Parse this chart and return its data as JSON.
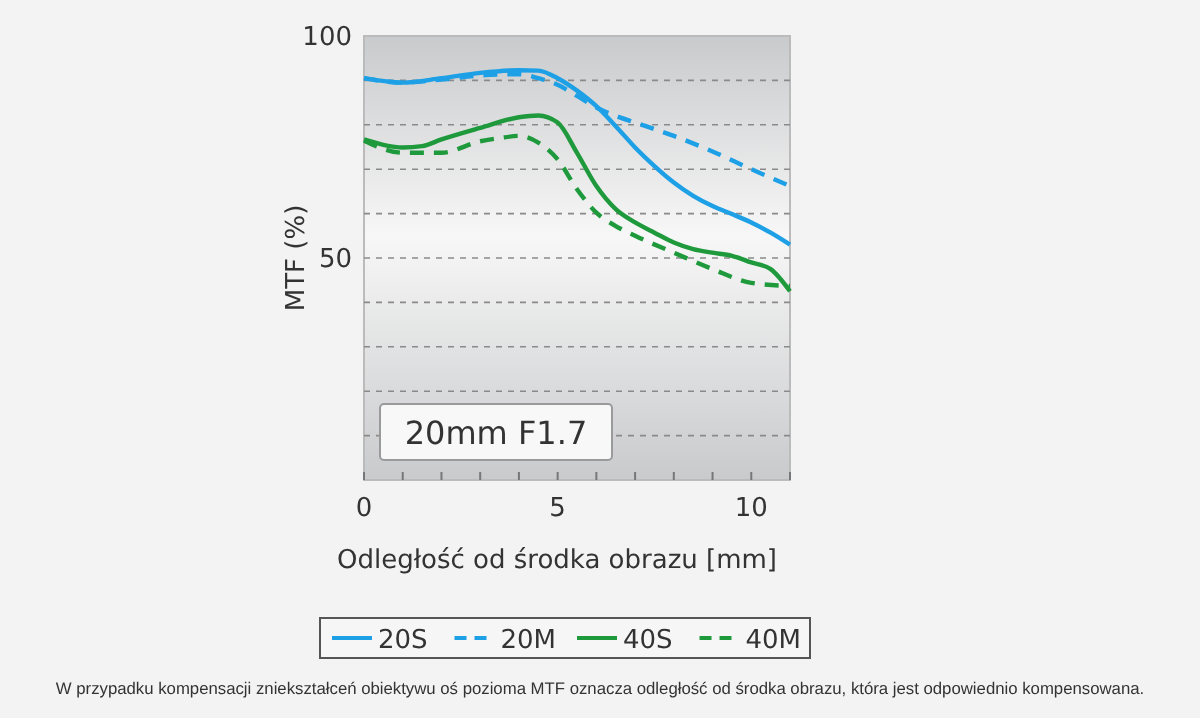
{
  "chart_data": {
    "type": "line",
    "xlabel": "Odległość od środka obrazu [mm]",
    "ylabel": "MTF (%)",
    "xlim": [
      0,
      11
    ],
    "ylim": [
      0,
      100
    ],
    "xticks": [
      0,
      {
        "value": 1,
        "label": null
      },
      {
        "value": 2,
        "label": null
      },
      {
        "value": 3,
        "label": null
      },
      {
        "value": 4,
        "label": null
      },
      5,
      {
        "value": 6,
        "label": null
      },
      {
        "value": 7,
        "label": null
      },
      {
        "value": 8,
        "label": null
      },
      {
        "value": 9,
        "label": null
      },
      10,
      {
        "value": 11,
        "label": null
      }
    ],
    "yticks": [
      {
        "value": 0,
        "label": null
      },
      {
        "value": 10,
        "label": null
      },
      {
        "value": 20,
        "label": null
      },
      {
        "value": 30,
        "label": null
      },
      {
        "value": 40,
        "label": null
      },
      50,
      {
        "value": 60,
        "label": null
      },
      {
        "value": 70,
        "label": null
      },
      {
        "value": 80,
        "label": null
      },
      {
        "value": 90,
        "label": null
      },
      100
    ],
    "grid": "y",
    "legend": "bottom",
    "marker": "none",
    "annotations": [
      "20mm F1.7",
      "W przypadku kompensacji zniekształceń obiektywu oś pozioma MTF oznacza odległość od środka obrazu, która jest odpowiednio kompensowana."
    ],
    "series": [
      {
        "name": "20S",
        "color": "#1ea0e6",
        "line_style": "solid",
        "x": [
          0,
          1,
          2,
          3,
          4,
          4.5,
          5,
          5.5,
          6,
          6.5,
          7,
          7.5,
          8,
          8.5,
          9,
          9.5,
          10,
          10.5,
          11
        ],
        "values": [
          90.5,
          89.5,
          90.5,
          91.7,
          92.3,
          92.2,
          90.5,
          87.7,
          84.2,
          79.7,
          74.9,
          70.7,
          67,
          64,
          61.7,
          59.9,
          58,
          55.7,
          53
        ]
      },
      {
        "name": "20M",
        "color": "#1ea0e6",
        "line_style": "dashed",
        "x": [
          0,
          1,
          2,
          3,
          4,
          4.5,
          5,
          5.5,
          6,
          6.5,
          7,
          8,
          9,
          10,
          11
        ],
        "values": [
          90.5,
          89.5,
          90.2,
          91.1,
          91.4,
          90.5,
          89,
          86.5,
          83.9,
          82,
          80.5,
          77.5,
          74,
          70,
          66.2
        ]
      },
      {
        "name": "40S",
        "color": "#1e9a3c",
        "line_style": "solid",
        "x": [
          0,
          0.5,
          1,
          1.5,
          2,
          3,
          4,
          4.5,
          5,
          5.5,
          6,
          6.5,
          7,
          7.5,
          8,
          8.5,
          9,
          9.5,
          10,
          10.5,
          11
        ],
        "values": [
          76.7,
          75.5,
          74.9,
          75.2,
          76.7,
          79.3,
          81.7,
          82.1,
          80.5,
          73.7,
          66.2,
          61,
          58,
          55.7,
          53.5,
          52,
          51.2,
          50.5,
          49,
          47.5,
          42.5
        ]
      },
      {
        "name": "40M",
        "color": "#1e9a3c",
        "line_style": "dashed",
        "x": [
          0,
          1,
          2,
          3,
          3.5,
          4,
          4.5,
          5,
          5.5,
          6,
          6.5,
          7,
          8,
          9,
          10,
          11
        ],
        "values": [
          76.4,
          73.7,
          73.7,
          76.3,
          77,
          77.5,
          76,
          72.2,
          65.5,
          60.2,
          57.2,
          55,
          51.2,
          47.5,
          44.4,
          43.7
        ]
      }
    ]
  }
}
